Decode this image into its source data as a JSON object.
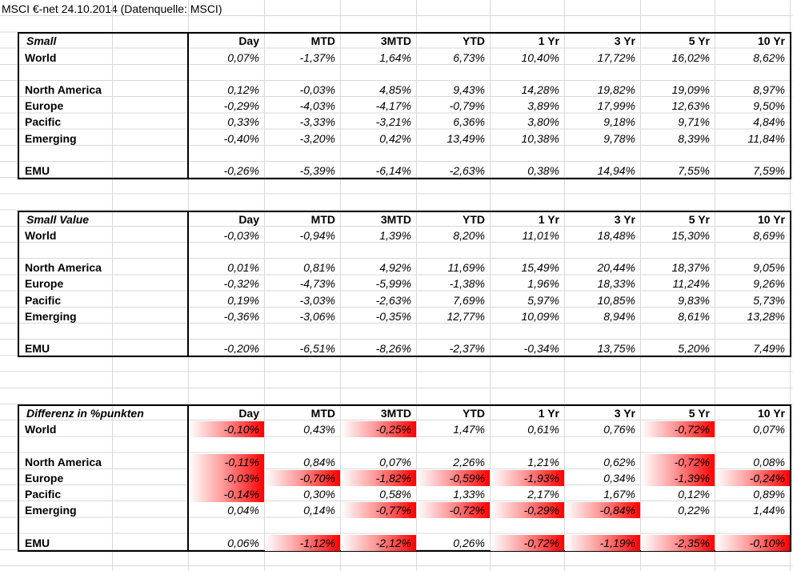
{
  "title": "MSCI €-net 24.10.2014 (Datenquelle: MSCI)",
  "tables": [
    {
      "header": [
        "Small",
        "Day",
        "MTD",
        "3MTD",
        "YTD",
        "1 Yr",
        "3 Yr",
        "5 Yr",
        "10 Yr"
      ],
      "highlight_negative": false,
      "rows": [
        {
          "label": "World",
          "values": [
            "0,07%",
            "-1,37%",
            "1,64%",
            "6,73%",
            "10,40%",
            "17,72%",
            "16,02%",
            "8,62%"
          ]
        },
        {
          "label": "North America",
          "values": [
            "0,12%",
            "-0,03%",
            "4,85%",
            "9,43%",
            "14,28%",
            "19,82%",
            "19,09%",
            "8,97%"
          ]
        },
        {
          "label": "Europe",
          "values": [
            "-0,29%",
            "-4,03%",
            "-4,17%",
            "-0,79%",
            "3,89%",
            "17,99%",
            "12,63%",
            "9,50%"
          ]
        },
        {
          "label": "Pacific",
          "values": [
            "0,33%",
            "-3,33%",
            "-3,21%",
            "6,36%",
            "3,80%",
            "9,18%",
            "9,71%",
            "4,84%"
          ]
        },
        {
          "label": "Emerging",
          "values": [
            "-0,40%",
            "-3,20%",
            "0,42%",
            "13,49%",
            "10,38%",
            "9,78%",
            "8,39%",
            "11,84%"
          ]
        },
        {
          "label": "EMU",
          "values": [
            "-0,26%",
            "-5,39%",
            "-6,14%",
            "-2,63%",
            "0,38%",
            "14,94%",
            "7,55%",
            "7,59%"
          ]
        }
      ]
    },
    {
      "header": [
        "Small Value",
        "Day",
        "MTD",
        "3MTD",
        "YTD",
        "1 Yr",
        "3 Yr",
        "5 Yr",
        "10 Yr"
      ],
      "highlight_negative": false,
      "rows": [
        {
          "label": "World",
          "values": [
            "-0,03%",
            "-0,94%",
            "1,39%",
            "8,20%",
            "11,01%",
            "18,48%",
            "15,30%",
            "8,69%"
          ]
        },
        {
          "label": "North America",
          "values": [
            "0,01%",
            "0,81%",
            "4,92%",
            "11,69%",
            "15,49%",
            "20,44%",
            "18,37%",
            "9,05%"
          ]
        },
        {
          "label": "Europe",
          "values": [
            "-0,32%",
            "-4,73%",
            "-5,99%",
            "-1,38%",
            "1,96%",
            "18,33%",
            "11,24%",
            "9,26%"
          ]
        },
        {
          "label": "Pacific",
          "values": [
            "0,19%",
            "-3,03%",
            "-2,63%",
            "7,69%",
            "5,97%",
            "10,85%",
            "9,83%",
            "5,73%"
          ]
        },
        {
          "label": "Emerging",
          "values": [
            "-0,36%",
            "-3,06%",
            "-0,35%",
            "12,77%",
            "10,09%",
            "8,94%",
            "8,61%",
            "13,28%"
          ]
        },
        {
          "label": "EMU",
          "values": [
            "-0,20%",
            "-6,51%",
            "-8,26%",
            "-2,37%",
            "-0,34%",
            "13,75%",
            "5,20%",
            "7,49%"
          ]
        }
      ]
    },
    {
      "header": [
        "Differenz in %punkten",
        "Day",
        "MTD",
        "3MTD",
        "YTD",
        "1 Yr",
        "3 Yr",
        "5 Yr",
        "10 Yr"
      ],
      "highlight_negative": true,
      "rows": [
        {
          "label": "World",
          "values": [
            "-0,10%",
            "0,43%",
            "-0,25%",
            "1,47%",
            "0,61%",
            "0,76%",
            "-0,72%",
            "0,07%"
          ]
        },
        {
          "label": "North America",
          "values": [
            "-0,11%",
            "0,84%",
            "0,07%",
            "2,26%",
            "1,21%",
            "0,62%",
            "-0,72%",
            "0,08%"
          ]
        },
        {
          "label": "Europe",
          "values": [
            "-0,03%",
            "-0,70%",
            "-1,82%",
            "-0,59%",
            "-1,93%",
            "0,34%",
            "-1,39%",
            "-0,24%"
          ]
        },
        {
          "label": "Pacific",
          "values": [
            "-0,14%",
            "0,30%",
            "0,58%",
            "1,33%",
            "2,17%",
            "1,67%",
            "0,12%",
            "0,89%"
          ]
        },
        {
          "label": "Emerging",
          "values": [
            "0,04%",
            "0,14%",
            "-0,77%",
            "-0,72%",
            "-0,29%",
            "-0,84%",
            "0,22%",
            "1,44%"
          ]
        },
        {
          "label": "EMU",
          "values": [
            "0,06%",
            "-1,12%",
            "-2,12%",
            "0,26%",
            "-0,72%",
            "-1,19%",
            "-2,35%",
            "-0,10%"
          ]
        }
      ]
    }
  ]
}
